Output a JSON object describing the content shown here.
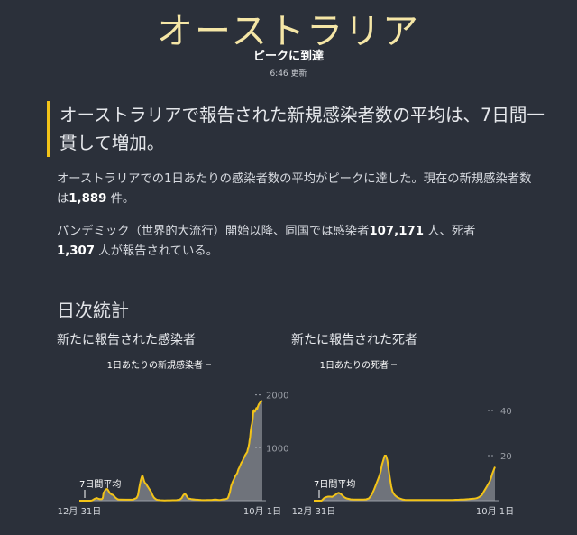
{
  "header": {
    "title": "オーストラリア",
    "status": "ピークに到達",
    "updated_time": "6:46",
    "updated_label": "更新"
  },
  "summary": {
    "headline": "オーストラリアで報告された新規感染者数の平均は、7日間一貫して増加。",
    "p1_before": "オーストラリアでの1日あたりの感染者数の平均がピークに達した。現在の新規感染者数は",
    "p1_number": "1,889",
    "p1_after": "件。",
    "p2_before": "パンデミック（世界的大流行）開始以降、同国では感染者",
    "p2_cases": "107,171",
    "p2_mid": "人、死者",
    "p2_deaths": "1,307",
    "p2_after": "人が報告されている。"
  },
  "section_title": "日次統計",
  "colors": {
    "line": "#f2c318",
    "bars": "#7b7f87",
    "grid": "#9a9ea6",
    "text": "#d7dae0"
  },
  "chart_data": [
    {
      "type": "line",
      "title": "新たに報告された感染者",
      "x_start_label": "12月 31日",
      "x_end_label": "10月 1日",
      "y_ticks": [
        1000,
        2000
      ],
      "ylim": [
        0,
        2300
      ],
      "annotation_top": "1日あたりの新規感染者",
      "annotation_avg": "7日間平均",
      "series": [
        {
          "name": "7日間平均",
          "kind": "line",
          "x": [
            0,
            60,
            70,
            80,
            85,
            88,
            91,
            95,
            100,
            105,
            112,
            120,
            130,
            140,
            150,
            160,
            170,
            175,
            178,
            180,
            182,
            185,
            188,
            190,
            195,
            200,
            205,
            210,
            220,
            230,
            240,
            250,
            260,
            270,
            280,
            290,
            300,
            350,
            400,
            430,
            440,
            450,
            460,
            465,
            470,
            475,
            480,
            485,
            490,
            495,
            500,
            505,
            510,
            515,
            520,
            530,
            540,
            550,
            560,
            570,
            580,
            595,
            610,
            625,
            640,
            660,
            680,
            700,
            720,
            730,
            740,
            750,
            760,
            768,
            775,
            780,
            787,
            793,
            800,
            805,
            812,
            820,
            830,
            840,
            855,
            870,
            885,
            900,
            915,
            930,
            945,
            960,
            975,
            990,
            1000,
            1010,
            1020,
            1030,
            1040,
            1050,
            1060,
            1070,
            1080,
            1090,
            1100,
            1110,
            1115,
            1120,
            1125,
            1130,
            1135,
            1140,
            1150,
            1160,
            1165,
            1170,
            1175,
            1180,
            1185,
            1190,
            1195,
            1200,
            1205,
            1210,
            1215,
            1220,
            1225,
            1230,
            1235,
            1240,
            1245,
            1250,
            1255,
            1260,
            1263,
            1266,
            1269,
            1272,
            1275,
            1278,
            1281,
            1284,
            1287,
            1290,
            1293,
            1296,
            1299,
            1302,
            1305,
            1308,
            1311,
            1314,
            1317,
            1320,
            1323,
            1326,
            1329,
            1332,
            1335,
            1338,
            1341,
            1344,
            1347,
            1350,
            1353,
            1356,
            1359,
            1362,
            1365,
            1368,
            1371,
            1374
          ],
          "values": [
            0,
            0,
            0,
            0,
            0,
            1,
            2,
            4,
            10,
            20,
            30,
            40,
            50,
            40,
            30,
            30,
            30,
            50,
            80,
            120,
            150,
            160,
            170,
            180,
            200,
            210,
            220,
            220,
            180,
            140,
            120,
            110,
            90,
            60,
            40,
            25,
            20,
            18,
            18,
            50,
            100,
            250,
            380,
            420,
            460,
            470,
            430,
            380,
            350,
            330,
            320,
            300,
            280,
            260,
            240,
            200,
            160,
            100,
            60,
            35,
            20,
            12,
            8,
            6,
            5,
            6,
            7,
            8,
            8,
            10,
            15,
            20,
            30,
            50,
            80,
            100,
            120,
            130,
            110,
            90,
            60,
            40,
            35,
            30,
            25,
            20,
            18,
            15,
            12,
            10,
            10,
            12,
            14,
            12,
            15,
            18,
            20,
            18,
            15,
            12,
            15,
            20,
            25,
            25,
            30,
            40,
            50,
            80,
            120,
            160,
            220,
            280,
            350,
            400,
            430,
            460,
            480,
            500,
            520,
            560,
            600,
            620,
            650,
            680,
            710,
            730,
            750,
            780,
            810,
            830,
            860,
            880,
            900,
            920,
            950,
            980,
            1000,
            1040,
            1080,
            1140,
            1180,
            1250,
            1320,
            1380,
            1420,
            1450,
            1500,
            1560,
            1640,
            1700,
            1710,
            1700,
            1680,
            1690,
            1710,
            1730,
            1750,
            1750,
            1730,
            1760,
            1780,
            1800,
            1820,
            1830,
            1840,
            1850,
            1860,
            1870,
            1875,
            1880,
            1885,
            1889
          ]
        },
        {
          "name": "1日あたりの新規感染者",
          "kind": "bars",
          "x": [
            0,
            60,
            70,
            80,
            85,
            88,
            91,
            95,
            100,
            105,
            112,
            120,
            130,
            140,
            150,
            160,
            170,
            175,
            178,
            180,
            182,
            185,
            188,
            190,
            195,
            200,
            205,
            210,
            220,
            230,
            240,
            250,
            260,
            270,
            280,
            290,
            300,
            350,
            400,
            430,
            440,
            450,
            460,
            465,
            470,
            475,
            480,
            485,
            490,
            495,
            500,
            505,
            510,
            515,
            520,
            530,
            540,
            550,
            560,
            570,
            580,
            595,
            610,
            625,
            640,
            660,
            680,
            700,
            720,
            730,
            740,
            750,
            760,
            768,
            775,
            780,
            787,
            793,
            800,
            805,
            812,
            820,
            830,
            840,
            855,
            870,
            885,
            900,
            915,
            930,
            945,
            960,
            975,
            990,
            1000,
            1010,
            1020,
            1030,
            1040,
            1050,
            1060,
            1070,
            1080,
            1090,
            1100,
            1110,
            1115,
            1120,
            1125,
            1130,
            1135,
            1140,
            1150,
            1160,
            1165,
            1170,
            1175,
            1180,
            1185,
            1190,
            1195,
            1200,
            1205,
            1210,
            1215,
            1220,
            1225,
            1230,
            1235,
            1240,
            1245,
            1250,
            1255,
            1260,
            1263,
            1266,
            1269,
            1272,
            1275,
            1278,
            1281,
            1284,
            1287,
            1290,
            1293,
            1296,
            1299,
            1302,
            1305,
            1308,
            1311,
            1314,
            1317,
            1320,
            1323,
            1326,
            1329,
            1332,
            1335,
            1338,
            1341,
            1344,
            1347,
            1350,
            1353,
            1356,
            1359,
            1362,
            1365,
            1368,
            1371,
            1374
          ],
          "values": [
            0,
            0,
            0,
            0,
            0,
            1,
            2,
            4,
            10,
            20,
            30,
            40,
            50,
            40,
            30,
            30,
            30,
            50,
            80,
            120,
            150,
            160,
            170,
            180,
            200,
            210,
            220,
            220,
            180,
            140,
            120,
            110,
            90,
            60,
            40,
            25,
            20,
            18,
            18,
            50,
            100,
            250,
            380,
            420,
            460,
            470,
            430,
            380,
            350,
            330,
            320,
            300,
            280,
            260,
            240,
            200,
            160,
            100,
            60,
            35,
            20,
            12,
            8,
            6,
            5,
            6,
            7,
            8,
            8,
            10,
            15,
            20,
            30,
            50,
            80,
            100,
            120,
            130,
            110,
            90,
            60,
            40,
            35,
            30,
            25,
            20,
            18,
            15,
            12,
            10,
            10,
            12,
            14,
            12,
            15,
            18,
            20,
            18,
            15,
            12,
            15,
            20,
            25,
            25,
            30,
            40,
            50,
            80,
            120,
            160,
            220,
            280,
            350,
            400,
            430,
            460,
            480,
            500,
            520,
            560,
            600,
            620,
            650,
            680,
            710,
            730,
            750,
            780,
            810,
            830,
            860,
            880,
            900,
            920,
            950,
            980,
            1000,
            1040,
            1080,
            1140,
            1180,
            1250,
            1320,
            1380,
            1420,
            1450,
            1500,
            1560,
            1640,
            1700,
            1710,
            1700,
            1680,
            1690,
            1710,
            1730,
            1750,
            1750,
            1730,
            1760,
            1780,
            1800,
            1820,
            1830,
            1840,
            1850,
            1860,
            1870,
            1875,
            1880,
            1885,
            1889
          ]
        }
      ]
    },
    {
      "type": "line",
      "title": "新たに報告された死者",
      "x_start_label": "12月 31日",
      "x_end_label": "10月 1日",
      "y_ticks": [
        20,
        40
      ],
      "ylim": [
        0,
        50
      ],
      "annotation_top": "1日あたりの死者",
      "annotation_avg": "7日間平均",
      "series": [
        {
          "name": "7日間平均",
          "kind": "line",
          "x": [
            0,
            30,
            40,
            60,
            80,
            90,
            100,
            110,
            125,
            140,
            155,
            170,
            180,
            190,
            200,
            210,
            220,
            230,
            240,
            250,
            265,
            280,
            300,
            320,
            340,
            360,
            380,
            400,
            420,
            440,
            460,
            480,
            500,
            510,
            520,
            530,
            540,
            550,
            560,
            570,
            580,
            590,
            600,
            610,
            620,
            630,
            640,
            650,
            660,
            670,
            680,
            690,
            700,
            720,
            740,
            760,
            780,
            800,
            820,
            840,
            860,
            880,
            900,
            920,
            940,
            960,
            980,
            1000,
            1020,
            1040,
            1060,
            1080,
            1100,
            1120,
            1140,
            1160,
            1180,
            1200,
            1220,
            1240,
            1260,
            1280,
            1290,
            1300,
            1310,
            1320,
            1330,
            1340,
            1350,
            1360,
            1370,
            1380
          ],
          "values": [
            0,
            0,
            0,
            0,
            1.2,
            1.5,
            1.7,
            1.8,
            1.8,
            1.7,
            2.3,
            2.8,
            3.3,
            3.5,
            3.2,
            2.8,
            2.2,
            1.7,
            1.3,
            1.0,
            0.8,
            0.6,
            0.5,
            0.5,
            0.5,
            0.5,
            0.5,
            0.6,
            1,
            2.5,
            5,
            8,
            11,
            13,
            16,
            18,
            20,
            20,
            18,
            14,
            10,
            6.5,
            4,
            3,
            2.3,
            1.8,
            1.4,
            1.1,
            0.9,
            0.7,
            0.5,
            0.4,
            0.3,
            0.3,
            0.3,
            0.3,
            0.3,
            0.3,
            0.3,
            0.3,
            0.3,
            0.3,
            0.3,
            0.3,
            0.3,
            0.3,
            0.3,
            0.3,
            0.3,
            0.3,
            0.3,
            0.4,
            0.4,
            0.5,
            0.5,
            0.6,
            0.7,
            0.8,
            0.9,
            1.1,
            1.6,
            2.5,
            3.5,
            4.5,
            5.5,
            6.5,
            7.5,
            8.5,
            10,
            12,
            13.5,
            15
          ]
        },
        {
          "name": "1日あたりの死者",
          "kind": "bars",
          "x": [
            0,
            30,
            40,
            60,
            80,
            90,
            100,
            110,
            125,
            140,
            155,
            170,
            180,
            190,
            200,
            210,
            220,
            230,
            240,
            250,
            265,
            280,
            300,
            320,
            340,
            360,
            380,
            400,
            420,
            440,
            460,
            480,
            500,
            510,
            520,
            530,
            540,
            550,
            560,
            570,
            580,
            590,
            600,
            610,
            620,
            630,
            640,
            650,
            660,
            670,
            680,
            690,
            700,
            720,
            740,
            760,
            780,
            800,
            820,
            840,
            860,
            880,
            900,
            920,
            940,
            960,
            980,
            1000,
            1020,
            1040,
            1060,
            1080,
            1100,
            1120,
            1140,
            1160,
            1180,
            1200,
            1220,
            1240,
            1260,
            1280,
            1290,
            1300,
            1310,
            1320,
            1330,
            1340,
            1350,
            1360,
            1370,
            1380
          ],
          "values": [
            0,
            0,
            0,
            0,
            1.2,
            1.5,
            1.7,
            1.8,
            1.8,
            1.7,
            2.3,
            2.8,
            3.3,
            3.5,
            3.2,
            2.8,
            2.2,
            1.7,
            1.3,
            1.0,
            0.8,
            0.6,
            0.5,
            0.5,
            0.5,
            0.5,
            0.5,
            0.6,
            1,
            2.5,
            5,
            8,
            11,
            13,
            16,
            18,
            20,
            20,
            18,
            14,
            10,
            6.5,
            4,
            3,
            2.3,
            1.8,
            1.4,
            1.1,
            0.9,
            0.7,
            0.5,
            0.4,
            0.3,
            0.3,
            0.3,
            0.3,
            0.3,
            0.3,
            0.3,
            0.3,
            0.3,
            0.3,
            0.3,
            0.3,
            0.3,
            0.3,
            0.3,
            0.3,
            0.3,
            0.3,
            0.3,
            0.4,
            0.4,
            0.5,
            0.5,
            0.6,
            0.7,
            0.8,
            0.9,
            1.1,
            1.6,
            2.5,
            3.5,
            4.5,
            5.5,
            6.5,
            7.5,
            8.5,
            10,
            12,
            13.5,
            15
          ]
        }
      ]
    }
  ]
}
